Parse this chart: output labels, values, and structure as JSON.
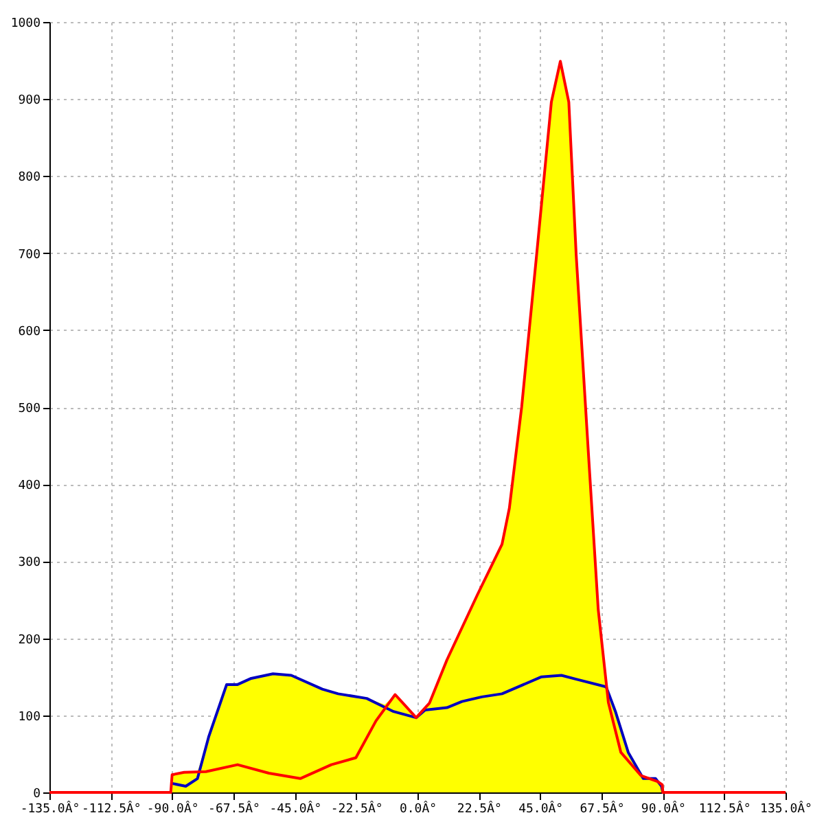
{
  "chart_data": {
    "type": "line",
    "xlim": [
      -135,
      135
    ],
    "ylim": [
      0,
      1000
    ],
    "xticks": [
      {
        "value": -135,
        "label": "-135.0Â°"
      },
      {
        "value": -112.5,
        "label": "-112.5Â°"
      },
      {
        "value": -90,
        "label": "-90.0Â°"
      },
      {
        "value": -67.5,
        "label": "-67.5Â°"
      },
      {
        "value": -45,
        "label": "-45.0Â°"
      },
      {
        "value": -22.5,
        "label": "-22.5Â°"
      },
      {
        "value": 0,
        "label": "0.0Â°"
      },
      {
        "value": 22.5,
        "label": "22.5Â°"
      },
      {
        "value": 45,
        "label": "45.0Â°"
      },
      {
        "value": 67.5,
        "label": "67.5Â°"
      },
      {
        "value": 90,
        "label": "90.0Â°"
      },
      {
        "value": 112.5,
        "label": "112.5Â°"
      },
      {
        "value": 135,
        "label": "135.0Â°"
      }
    ],
    "yticks": [
      0,
      100,
      200,
      300,
      400,
      500,
      600,
      700,
      800,
      900,
      1000
    ],
    "grid": true,
    "marker": "none",
    "line_style": "solid",
    "series": [
      {
        "type": "area",
        "color": "#ffff00",
        "x": [
          -90,
          -85.6,
          -80.7,
          -76.6,
          -70,
          -66,
          -61,
          -53,
          -46.3,
          -34.9,
          -29.1,
          -18.6,
          -12,
          -8.2,
          -3.8,
          -0.5,
          2.8,
          4.4,
          10.8,
          21.9,
          31,
          33.7,
          38.2,
          43.7,
          49.1,
          52.4,
          55.5,
          58.2,
          62.8,
          66.3,
          69.2,
          72.7,
          77.3,
          81.9,
          88.2,
          89.8,
          90
        ],
        "values": [
          23,
          26,
          27,
          72,
          140,
          140,
          148,
          154,
          152,
          134,
          128,
          122,
          114,
          127,
          110,
          97,
          107,
          116,
          172,
          256,
          322,
          369,
          500,
          698,
          896,
          949,
          896,
          698,
          434,
          237,
          137,
          104,
          52,
          22,
          14,
          10,
          0
        ]
      },
      {
        "color": "#0000c0",
        "x": [
          -90.5,
          -85,
          -80.7,
          -76.6,
          -70,
          -66,
          -61,
          -53,
          -46.3,
          -34.9,
          -29.1,
          -18.6,
          -8.8,
          -0.5,
          2.8,
          10.8,
          16.3,
          23.6,
          31,
          45.5,
          52.8,
          58.2,
          69.2,
          72.7,
          77.3,
          82.8,
          87.3,
          89.5,
          90
        ],
        "values": [
          12,
          8,
          18,
          72,
          140,
          140,
          148,
          154,
          152,
          134,
          128,
          122,
          105,
          97,
          107,
          110,
          118,
          124,
          128,
          150,
          152,
          147,
          137,
          104,
          52,
          18,
          18,
          8,
          0
        ]
      },
      {
        "color": "#ff0000",
        "x": [
          -135,
          -90.5,
          -90,
          -85.6,
          -77.6,
          -66,
          -54.5,
          -43,
          -31.6,
          -22.6,
          -15.2,
          -8.2,
          -3.8,
          -0.5,
          4.4,
          10.8,
          21.9,
          31,
          33.7,
          38.2,
          43.7,
          49.1,
          52.4,
          55.5,
          58.2,
          62.8,
          66.3,
          70,
          74.6,
          81.9,
          88.2,
          89.8,
          90,
          135
        ],
        "values": [
          0,
          0,
          23,
          26,
          27,
          36,
          25,
          18,
          36,
          45,
          93,
          127,
          110,
          97,
          116,
          172,
          256,
          322,
          369,
          500,
          698,
          896,
          949,
          896,
          698,
          434,
          237,
          117,
          52,
          22,
          14,
          10,
          0,
          0
        ]
      }
    ]
  }
}
